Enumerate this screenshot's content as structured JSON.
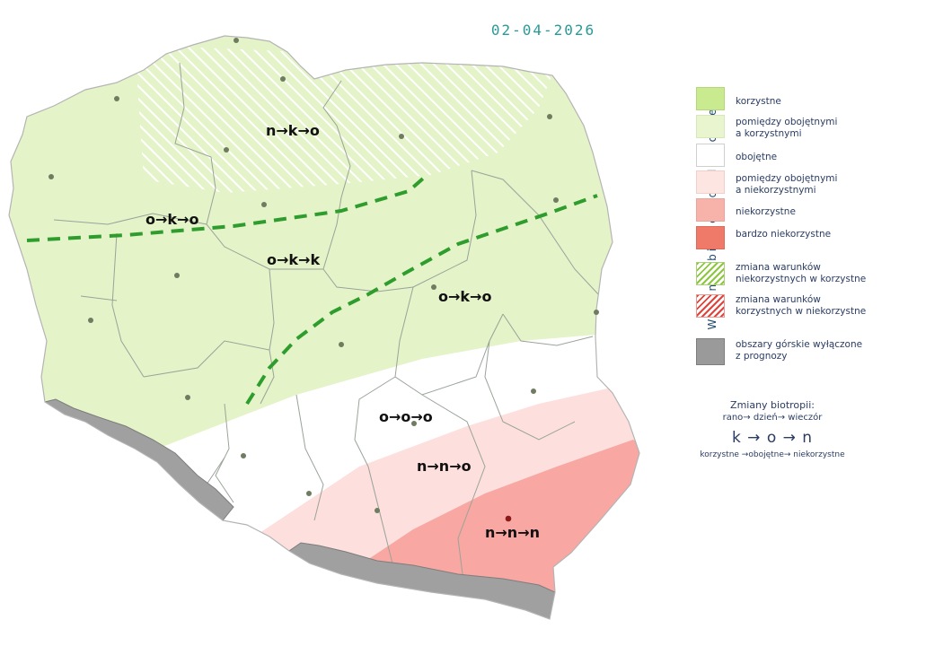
{
  "date": "02-04-2026",
  "regions": [
    {
      "id": "north",
      "code": "n→k→o"
    },
    {
      "id": "west",
      "code": "o→k→o"
    },
    {
      "id": "central-west",
      "code": "o→k→k"
    },
    {
      "id": "east",
      "code": "o→k→o"
    },
    {
      "id": "south-central",
      "code": "o→o→o"
    },
    {
      "id": "south-east-upper",
      "code": "n→n→o"
    },
    {
      "id": "south-east",
      "code": "n→n→n"
    }
  ],
  "legend": {
    "side_title": "Warunki  biometeorologiczne",
    "items": [
      {
        "key": "korzystne",
        "lines": [
          "korzystne"
        ],
        "color": "#c9ea8f"
      },
      {
        "key": "pomiedzy-kor",
        "lines": [
          "pomiędzy obojętnymi",
          "a korzystnymi"
        ],
        "color": "#e8f5cf"
      },
      {
        "key": "obojetne",
        "lines": [
          "obojętne"
        ],
        "color": "#ffffff"
      },
      {
        "key": "pomiedzy-niekor",
        "lines": [
          "pomiędzy obojętnymi",
          "a niekorzystnymi"
        ],
        "color": "#fde6e1"
      },
      {
        "key": "niekorzystne",
        "lines": [
          "niekorzystne"
        ],
        "color": "#f7b2aa"
      },
      {
        "key": "bardzo",
        "lines": [
          "bardzo niekorzystne"
        ],
        "color": "#f07a6a"
      },
      {
        "key": "zmiana-kor",
        "lines": [
          "zmiana warunków",
          "niekorzystnych w korzystne"
        ],
        "color": "#8cc63f"
      },
      {
        "key": "zmiana-niekor",
        "lines": [
          "zmiana warunków",
          "korzystnych w niekorzystne"
        ],
        "color": "#e0433a"
      },
      {
        "key": "gory",
        "lines": [
          "obszary górskie wyłączone",
          "z prognozy"
        ],
        "color": "#9a9a9a"
      }
    ]
  },
  "biotropy": {
    "title": "Zmiany biotropii:",
    "sub": "rano→ dzień→ wieczór",
    "example": "k → o → n",
    "foot": "korzystne →obojętne→ niekorzystne"
  }
}
